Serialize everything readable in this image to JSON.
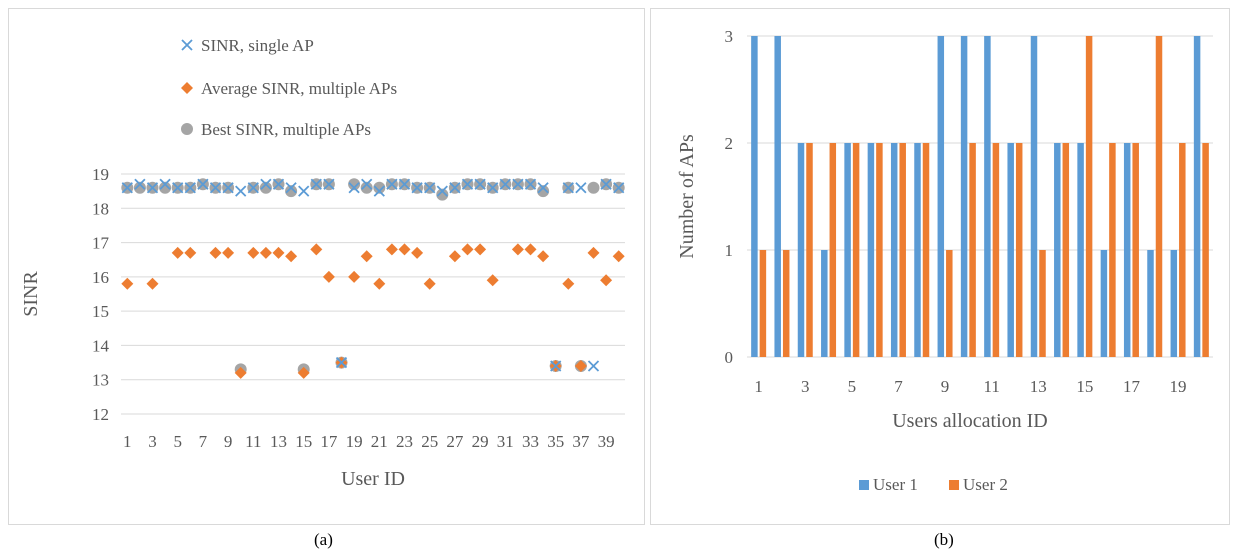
{
  "captions": {
    "a": "(a)",
    "b": "(b)"
  },
  "chart_data": [
    {
      "type": "scatter",
      "xlabel": "User ID",
      "ylabel": "SINR",
      "ylim": [
        12,
        19
      ],
      "yticks": [
        "12",
        "13",
        "14",
        "15",
        "16",
        "17",
        "18",
        "19"
      ],
      "xticks": [
        "1",
        "3",
        "5",
        "7",
        "9",
        "11",
        "13",
        "15",
        "17",
        "19",
        "21",
        "23",
        "25",
        "27",
        "29",
        "31",
        "33",
        "35",
        "37",
        "39"
      ],
      "x": [
        1,
        2,
        3,
        4,
        5,
        6,
        7,
        8,
        9,
        10,
        11,
        12,
        13,
        14,
        15,
        16,
        17,
        18,
        19,
        20,
        21,
        22,
        23,
        24,
        25,
        26,
        27,
        28,
        29,
        30,
        31,
        32,
        33,
        34,
        35,
        36,
        37,
        38,
        39,
        40
      ],
      "grid": true,
      "legend_position": "top-left",
      "colors": {
        "single": "#5b9bd5",
        "average": "#ed7d31",
        "best": "#a5a5a5"
      },
      "series": [
        {
          "name": "SINR, single AP",
          "marker": "x",
          "values": [
            18.6,
            18.7,
            18.6,
            18.7,
            18.6,
            18.6,
            18.7,
            18.6,
            18.6,
            18.5,
            18.6,
            18.7,
            18.7,
            18.6,
            18.5,
            18.7,
            18.7,
            13.5,
            18.6,
            18.7,
            18.5,
            18.7,
            18.7,
            18.6,
            18.6,
            18.5,
            18.6,
            18.7,
            18.7,
            18.6,
            18.7,
            18.7,
            18.7,
            18.6,
            13.4,
            18.6,
            18.6,
            13.4,
            18.7,
            18.6
          ]
        },
        {
          "name": "Average SINR, multiple APs",
          "marker": "diamond",
          "values": [
            15.8,
            null,
            15.8,
            null,
            16.7,
            16.7,
            null,
            16.7,
            16.7,
            13.2,
            16.7,
            16.7,
            16.7,
            16.6,
            13.2,
            16.8,
            16.0,
            13.5,
            16.0,
            16.6,
            15.8,
            16.8,
            16.8,
            16.7,
            15.8,
            null,
            16.6,
            16.8,
            16.8,
            15.9,
            null,
            16.8,
            16.8,
            16.6,
            13.4,
            15.8,
            13.4,
            16.7,
            15.9,
            16.6
          ]
        },
        {
          "name": "Best SINR, multiple APs",
          "marker": "circle",
          "values": [
            18.6,
            18.6,
            18.6,
            18.6,
            18.6,
            18.6,
            18.7,
            18.6,
            18.6,
            13.3,
            18.6,
            18.6,
            18.7,
            18.5,
            13.3,
            18.7,
            18.7,
            13.5,
            18.7,
            18.6,
            18.6,
            18.7,
            18.7,
            18.6,
            18.6,
            18.4,
            18.6,
            18.7,
            18.7,
            18.6,
            18.7,
            18.7,
            18.7,
            18.5,
            13.4,
            18.6,
            13.4,
            18.6,
            18.7,
            18.6
          ]
        }
      ]
    },
    {
      "type": "bar",
      "xlabel": "Users allocation ID",
      "ylabel": "Number of APs",
      "ylim": [
        0,
        3
      ],
      "yticks": [
        "0",
        "1",
        "2",
        "3"
      ],
      "xticks": [
        "1",
        "3",
        "5",
        "7",
        "9",
        "11",
        "13",
        "15",
        "17",
        "19"
      ],
      "categories": [
        1,
        2,
        3,
        4,
        5,
        6,
        7,
        8,
        9,
        10,
        11,
        12,
        13,
        14,
        15,
        16,
        17,
        18,
        19,
        20
      ],
      "grid": true,
      "legend_position": "bottom",
      "colors": {
        "user1": "#5b9bd5",
        "user2": "#ed7d31"
      },
      "series": [
        {
          "name": "User 1",
          "values": [
            3,
            3,
            2,
            1,
            2,
            2,
            2,
            2,
            3,
            3,
            3,
            2,
            3,
            2,
            2,
            1,
            2,
            1,
            1,
            3
          ]
        },
        {
          "name": "User 2",
          "values": [
            1,
            1,
            2,
            2,
            2,
            2,
            2,
            2,
            1,
            2,
            2,
            2,
            1,
            2,
            3,
            2,
            2,
            3,
            2,
            2
          ]
        }
      ]
    }
  ]
}
